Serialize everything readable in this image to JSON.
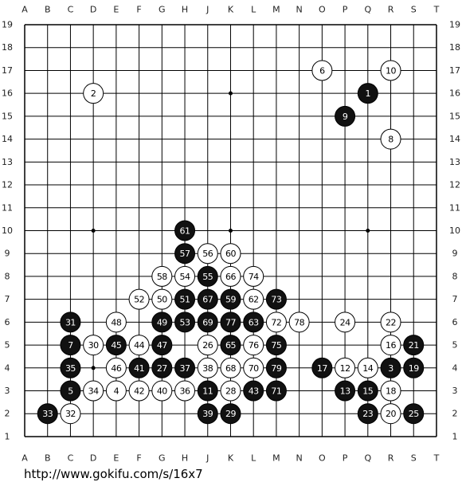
{
  "board": {
    "columns": [
      "A",
      "B",
      "C",
      "D",
      "E",
      "F",
      "G",
      "H",
      "J",
      "K",
      "L",
      "M",
      "N",
      "O",
      "P",
      "Q",
      "R",
      "S",
      "T"
    ],
    "rows": [
      19,
      18,
      17,
      16,
      15,
      14,
      13,
      12,
      11,
      10,
      9,
      8,
      7,
      6,
      5,
      4,
      3,
      2,
      1
    ]
  },
  "stones": [
    {
      "label": 1,
      "color": "black",
      "col": "Q",
      "row": 16
    },
    {
      "label": 2,
      "color": "white",
      "col": "D",
      "row": 16
    },
    {
      "label": 3,
      "color": "black",
      "col": "R",
      "row": 4
    },
    {
      "label": 4,
      "color": "white",
      "col": "E",
      "row": 3
    },
    {
      "label": 5,
      "color": "black",
      "col": "C",
      "row": 3
    },
    {
      "label": 6,
      "color": "white",
      "col": "O",
      "row": 17
    },
    {
      "label": 7,
      "color": "black",
      "col": "C",
      "row": 5
    },
    {
      "label": 8,
      "color": "white",
      "col": "R",
      "row": 14
    },
    {
      "label": 9,
      "color": "black",
      "col": "P",
      "row": 15
    },
    {
      "label": 10,
      "color": "white",
      "col": "R",
      "row": 17
    },
    {
      "label": 11,
      "color": "black",
      "col": "J",
      "row": 3
    },
    {
      "label": 12,
      "color": "white",
      "col": "P",
      "row": 4
    },
    {
      "label": 13,
      "color": "black",
      "col": "P",
      "row": 3
    },
    {
      "label": 14,
      "color": "white",
      "col": "Q",
      "row": 4
    },
    {
      "label": 15,
      "color": "black",
      "col": "Q",
      "row": 3
    },
    {
      "label": 16,
      "color": "white",
      "col": "R",
      "row": 5
    },
    {
      "label": 17,
      "color": "black",
      "col": "O",
      "row": 4
    },
    {
      "label": 18,
      "color": "white",
      "col": "R",
      "row": 3
    },
    {
      "label": 19,
      "color": "black",
      "col": "S",
      "row": 4
    },
    {
      "label": 20,
      "color": "white",
      "col": "R",
      "row": 2
    },
    {
      "label": 21,
      "color": "black",
      "col": "S",
      "row": 5
    },
    {
      "label": 22,
      "color": "white",
      "col": "R",
      "row": 6
    },
    {
      "label": 23,
      "color": "black",
      "col": "Q",
      "row": 2
    },
    {
      "label": 24,
      "color": "white",
      "col": "P",
      "row": 6
    },
    {
      "label": 25,
      "color": "black",
      "col": "S",
      "row": 2
    },
    {
      "label": 26,
      "color": "white",
      "col": "J",
      "row": 5
    },
    {
      "label": 27,
      "color": "black",
      "col": "G",
      "row": 4
    },
    {
      "label": 28,
      "color": "white",
      "col": "K",
      "row": 3
    },
    {
      "label": 29,
      "color": "black",
      "col": "K",
      "row": 2
    },
    {
      "label": 30,
      "color": "white",
      "col": "D",
      "row": 5
    },
    {
      "label": 31,
      "color": "black",
      "col": "C",
      "row": 6
    },
    {
      "label": 32,
      "color": "white",
      "col": "C",
      "row": 2
    },
    {
      "label": 33,
      "color": "black",
      "col": "B",
      "row": 2
    },
    {
      "label": 34,
      "color": "white",
      "col": "D",
      "row": 3
    },
    {
      "label": 35,
      "color": "black",
      "col": "C",
      "row": 4
    },
    {
      "label": 36,
      "color": "white",
      "col": "H",
      "row": 3
    },
    {
      "label": 37,
      "color": "black",
      "col": "H",
      "row": 4
    },
    {
      "label": 38,
      "color": "white",
      "col": "J",
      "row": 4
    },
    {
      "label": 39,
      "color": "black",
      "col": "J",
      "row": 2
    },
    {
      "label": 40,
      "color": "white",
      "col": "G",
      "row": 3
    },
    {
      "label": 41,
      "color": "black",
      "col": "F",
      "row": 4
    },
    {
      "label": 42,
      "color": "white",
      "col": "F",
      "row": 3
    },
    {
      "label": 43,
      "color": "black",
      "col": "L",
      "row": 3
    },
    {
      "label": 44,
      "color": "white",
      "col": "F",
      "row": 5
    },
    {
      "label": 45,
      "color": "black",
      "col": "E",
      "row": 5
    },
    {
      "label": 46,
      "color": "white",
      "col": "E",
      "row": 4
    },
    {
      "label": 47,
      "color": "black",
      "col": "G",
      "row": 5
    },
    {
      "label": 48,
      "color": "white",
      "col": "E",
      "row": 6
    },
    {
      "label": 49,
      "color": "black",
      "col": "G",
      "row": 6
    },
    {
      "label": 50,
      "color": "white",
      "col": "G",
      "row": 7
    },
    {
      "label": 51,
      "color": "black",
      "col": "H",
      "row": 7
    },
    {
      "label": 52,
      "color": "white",
      "col": "F",
      "row": 7
    },
    {
      "label": 53,
      "color": "black",
      "col": "H",
      "row": 6
    },
    {
      "label": 54,
      "color": "white",
      "col": "H",
      "row": 8
    },
    {
      "label": 55,
      "color": "black",
      "col": "J",
      "row": 8
    },
    {
      "label": 56,
      "color": "white",
      "col": "J",
      "row": 9
    },
    {
      "label": 57,
      "color": "black",
      "col": "H",
      "row": 9
    },
    {
      "label": 58,
      "color": "white",
      "col": "G",
      "row": 8
    },
    {
      "label": 59,
      "color": "black",
      "col": "K",
      "row": 7
    },
    {
      "label": 60,
      "color": "white",
      "col": "K",
      "row": 9
    },
    {
      "label": 61,
      "color": "black",
      "col": "H",
      "row": 10
    },
    {
      "label": 62,
      "color": "white",
      "col": "L",
      "row": 7
    },
    {
      "label": 63,
      "color": "black",
      "col": "L",
      "row": 6
    },
    {
      "label": 65,
      "color": "black",
      "col": "K",
      "row": 5
    },
    {
      "label": 66,
      "color": "white",
      "col": "K",
      "row": 8
    },
    {
      "label": 67,
      "color": "black",
      "col": "J",
      "row": 7
    },
    {
      "label": 68,
      "color": "white",
      "col": "K",
      "row": 4
    },
    {
      "label": 69,
      "color": "black",
      "col": "J",
      "row": 6
    },
    {
      "label": 70,
      "color": "white",
      "col": "L",
      "row": 4
    },
    {
      "label": 71,
      "color": "black",
      "col": "M",
      "row": 3
    },
    {
      "label": 72,
      "color": "white",
      "col": "M",
      "row": 6
    },
    {
      "label": 73,
      "color": "black",
      "col": "M",
      "row": 7
    },
    {
      "label": 74,
      "color": "white",
      "col": "L",
      "row": 8
    },
    {
      "label": 75,
      "color": "black",
      "col": "M",
      "row": 5
    },
    {
      "label": 76,
      "color": "white",
      "col": "L",
      "row": 5
    },
    {
      "label": 77,
      "color": "black",
      "col": "K",
      "row": 6
    },
    {
      "label": 78,
      "color": "white",
      "col": "N",
      "row": 6
    },
    {
      "label": 79,
      "color": "black",
      "col": "M",
      "row": 4
    }
  ],
  "footer": {
    "url": "http://www.gokifu.com/s/16x7"
  }
}
